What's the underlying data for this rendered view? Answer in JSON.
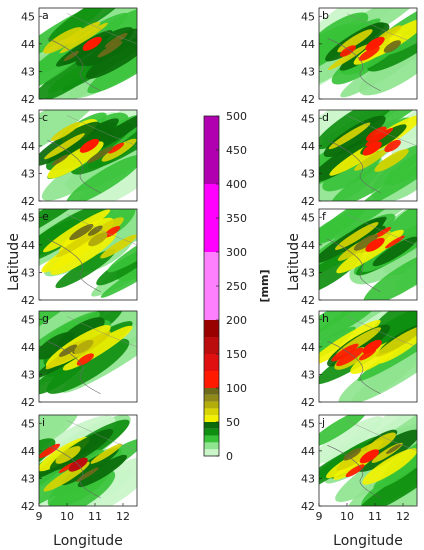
{
  "figure": {
    "y_label": "Latitude",
    "x_label": "Longitude",
    "lat_ticks": [
      "45",
      "44",
      "43",
      "42"
    ],
    "lon_ticks": [
      "9",
      "10",
      "11",
      "12"
    ]
  },
  "chart_data": {
    "type": "heatmap",
    "panels": [
      {
        "label": "a",
        "max_class": "100-125",
        "max_lon": 10.9,
        "max_lat": 44.0
      },
      {
        "label": "b",
        "max_class": "100-125",
        "max_lon": 11.0,
        "max_lat": 44.0
      },
      {
        "label": "c",
        "max_class": "100-125",
        "max_lon": 10.8,
        "max_lat": 44.0
      },
      {
        "label": "d",
        "max_class": "100-125",
        "max_lon": 10.9,
        "max_lat": 43.9
      },
      {
        "label": "e",
        "max_class": "75-100",
        "max_lon": 11.1,
        "max_lat": 44.2
      },
      {
        "label": "f",
        "max_class": "100-125",
        "max_lon": 11.0,
        "max_lat": 44.0
      },
      {
        "label": "g",
        "max_class": "75-100",
        "max_lon": 10.6,
        "max_lat": 44.0
      },
      {
        "label": "h",
        "max_class": "100-125",
        "max_lon": 10.9,
        "max_lat": 44.0
      },
      {
        "label": "i",
        "max_class": "150-175",
        "max_lon": 10.4,
        "max_lat": 43.5
      },
      {
        "label": "j",
        "max_class": "100-125",
        "max_lon": 10.8,
        "max_lat": 43.8
      }
    ],
    "xlim": [
      9,
      12.5
    ],
    "ylim": [
      42,
      45.3
    ],
    "colorbar": {
      "label": "[mm]",
      "ticks": [
        "0",
        "50",
        "100",
        "150",
        "200",
        "250",
        "300",
        "350",
        "400",
        "450",
        "500"
      ],
      "min": 0,
      "max": 500,
      "bins": [
        {
          "from": 0,
          "to": 10,
          "color": "#c9f5c9"
        },
        {
          "from": 10,
          "to": 20,
          "color": "#8fe48f"
        },
        {
          "from": 20,
          "to": 30,
          "color": "#38c238"
        },
        {
          "from": 30,
          "to": 40,
          "color": "#0f8f0f"
        },
        {
          "from": 40,
          "to": 50,
          "color": "#0a6a0a"
        },
        {
          "from": 50,
          "to": 60,
          "color": "#f2f200"
        },
        {
          "from": 60,
          "to": 70,
          "color": "#d8d400"
        },
        {
          "from": 70,
          "to": 80,
          "color": "#b3ad0c"
        },
        {
          "from": 80,
          "to": 90,
          "color": "#8f8a18"
        },
        {
          "from": 90,
          "to": 100,
          "color": "#6e6a1a"
        },
        {
          "from": 100,
          "to": 125,
          "color": "#ff1a00"
        },
        {
          "from": 125,
          "to": 150,
          "color": "#e01010"
        },
        {
          "from": 150,
          "to": 175,
          "color": "#bb0d0d"
        },
        {
          "from": 175,
          "to": 200,
          "color": "#990000"
        },
        {
          "from": 200,
          "to": 300,
          "color": "#ff80ff"
        },
        {
          "from": 300,
          "to": 400,
          "color": "#ff00ff"
        },
        {
          "from": 400,
          "to": 500,
          "color": "#b000b0"
        }
      ]
    }
  }
}
